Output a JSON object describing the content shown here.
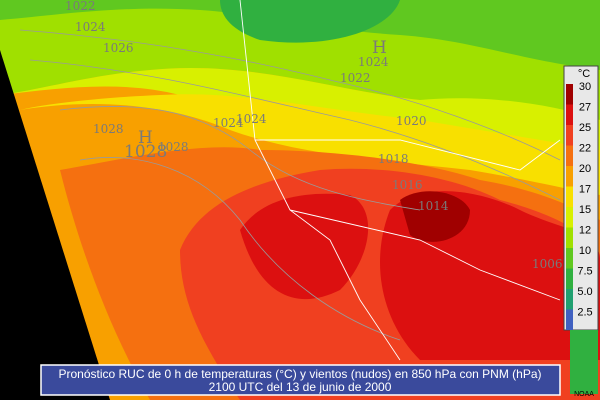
{
  "map": {
    "legend": {
      "unit": "°C",
      "items": [
        {
          "label": "30",
          "color": "#a00000"
        },
        {
          "label": "27",
          "color": "#dc1010"
        },
        {
          "label": "25",
          "color": "#f04020"
        },
        {
          "label": "22",
          "color": "#f57010"
        },
        {
          "label": "20",
          "color": "#f8a000"
        },
        {
          "label": "17",
          "color": "#f8e000"
        },
        {
          "label": "15",
          "color": "#d8f000"
        },
        {
          "label": "12",
          "color": "#a0e000"
        },
        {
          "label": "10",
          "color": "#60c820"
        },
        {
          "label": "7.5",
          "color": "#30b040"
        },
        {
          "label": "5.0",
          "color": "#20a070"
        },
        {
          "label": "2.5",
          "color": "#4060c0"
        }
      ]
    },
    "isobars": [
      "1022",
      "1024",
      "1026",
      "1028",
      "1028",
      "1028",
      "1024",
      "1024",
      "1022",
      "1020",
      "1018",
      "1016",
      "1014",
      "1006",
      "1024"
    ],
    "highs": [
      "H",
      "H"
    ],
    "caption": [
      "Pronóstico RUC de 0 h de temperaturas (°C) y vientos (nudos) en 850 hPa con PNM (hPa)",
      "2100 UTC del 13 de junio de 2000"
    ],
    "credit": "NOAA"
  }
}
